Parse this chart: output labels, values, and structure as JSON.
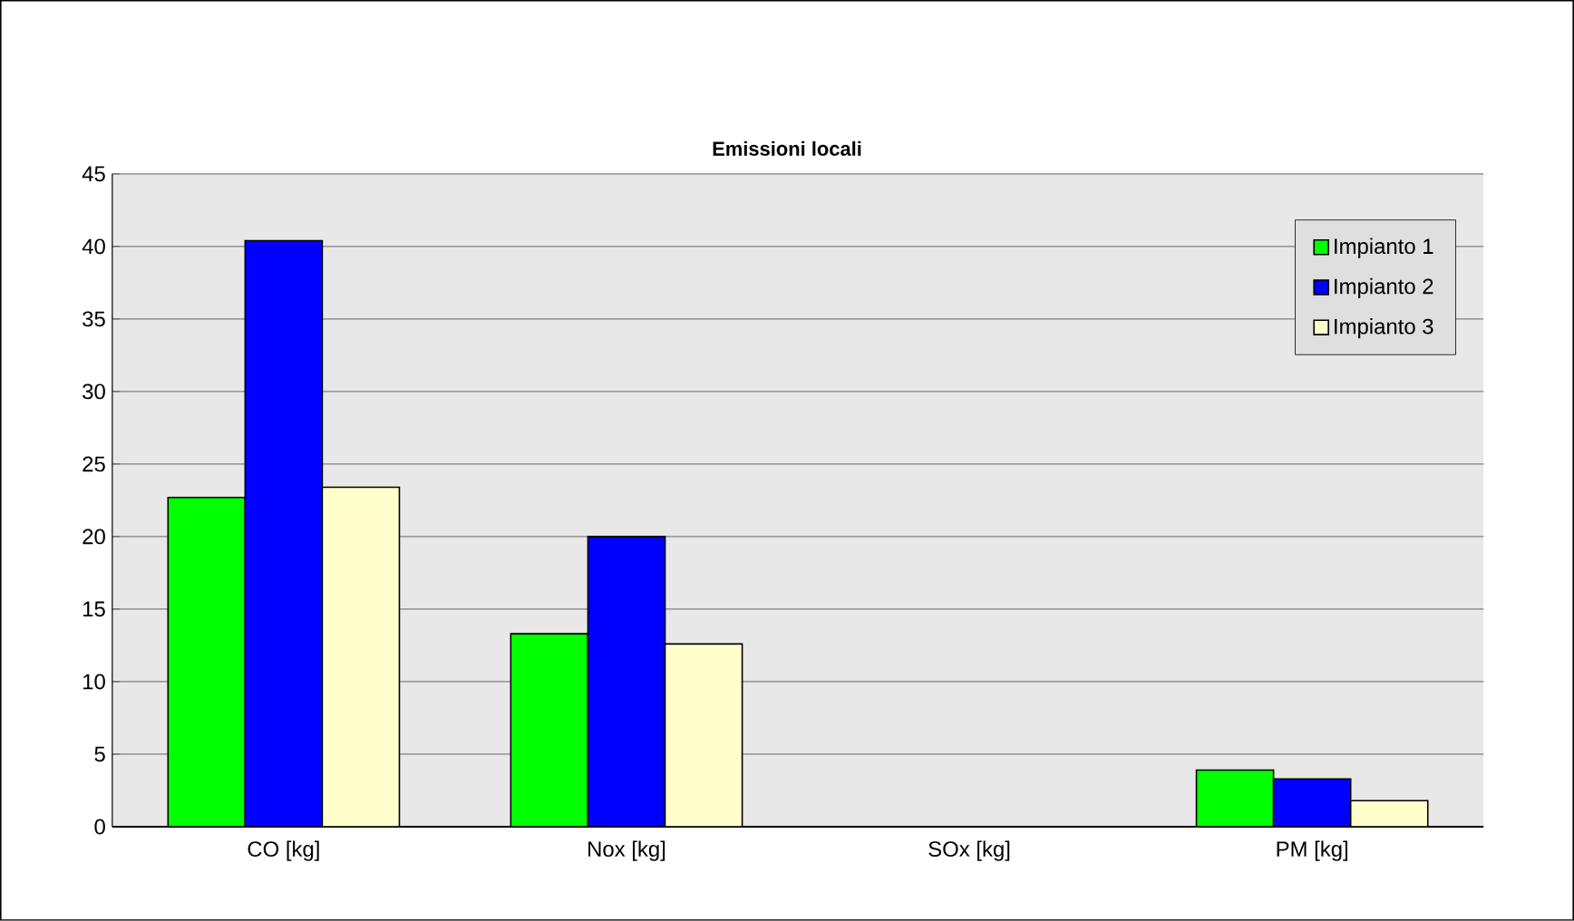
{
  "chart_data": {
    "type": "bar",
    "title": "Emissioni locali",
    "categories": [
      "CO [kg]",
      "Nox [kg]",
      "SOx [kg]",
      "PM [kg]"
    ],
    "series": [
      {
        "name": "Impianto 1",
        "color": "#00ff00",
        "values": [
          22.7,
          13.3,
          null,
          3.9
        ]
      },
      {
        "name": "Impianto 2",
        "color": "#0000ff",
        "values": [
          40.4,
          20.0,
          null,
          3.3
        ]
      },
      {
        "name": "Impianto 3",
        "color": "#ffffcc",
        "values": [
          23.4,
          12.6,
          null,
          1.8
        ]
      }
    ],
    "ylim": [
      0,
      45
    ],
    "yticks": [
      0,
      5,
      10,
      15,
      20,
      25,
      30,
      35,
      40,
      45
    ],
    "grid": "y",
    "legend": "top right"
  }
}
